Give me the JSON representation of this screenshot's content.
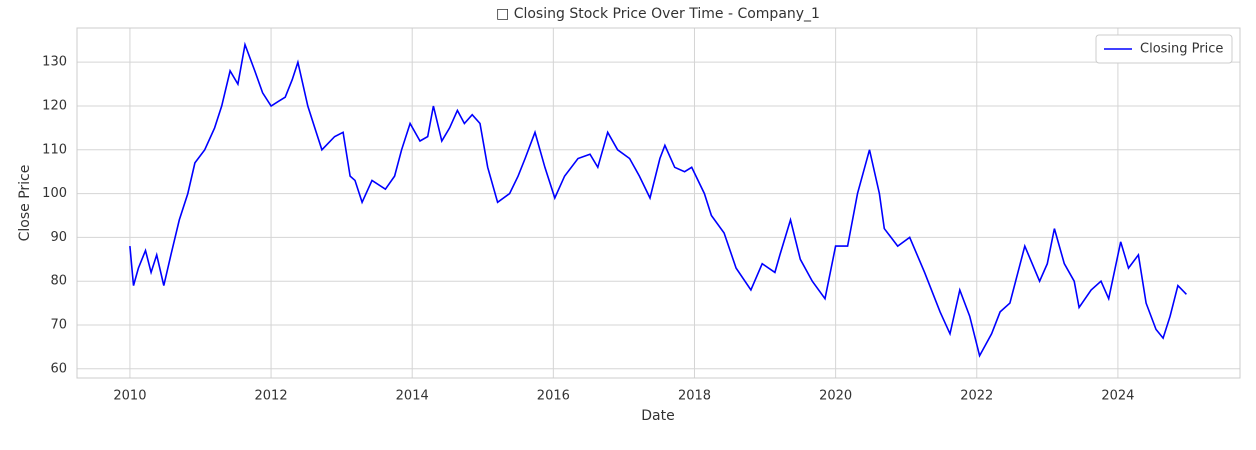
{
  "chart_data": {
    "type": "line",
    "title": "□ Closing Stock Price Over Time - Company_1",
    "x_label": "Date",
    "y_label": "Close Price",
    "x": [
      2010.0,
      2010.05,
      2010.12,
      2010.22,
      2010.3,
      2010.38,
      2010.48,
      2010.58,
      2010.7,
      2010.82,
      2010.92,
      2011.06,
      2011.2,
      2011.3,
      2011.42,
      2011.53,
      2011.63,
      2011.77,
      2011.88,
      2012.0,
      2012.1,
      2012.2,
      2012.3,
      2012.38,
      2012.52,
      2012.62,
      2012.72,
      2012.9,
      2013.02,
      2013.12,
      2013.19,
      2013.29,
      2013.43,
      2013.62,
      2013.75,
      2013.85,
      2013.97,
      2014.11,
      2014.22,
      2014.3,
      2014.42,
      2014.53,
      2014.64,
      2014.74,
      2014.85,
      2014.96,
      2015.07,
      2015.21,
      2015.38,
      2015.5,
      2015.6,
      2015.74,
      2015.88,
      2016.02,
      2016.16,
      2016.35,
      2016.52,
      2016.63,
      2016.77,
      2016.91,
      2017.08,
      2017.22,
      2017.37,
      2017.51,
      2017.58,
      2017.72,
      2017.86,
      2017.96,
      2018.14,
      2018.24,
      2018.42,
      2018.59,
      2018.8,
      2018.96,
      2019.14,
      2019.21,
      2019.36,
      2019.5,
      2019.67,
      2019.85,
      2020.0,
      2020.17,
      2020.31,
      2020.48,
      2020.62,
      2020.69,
      2020.88,
      2021.05,
      2021.26,
      2021.48,
      2021.62,
      2021.76,
      2021.9,
      2022.04,
      2022.21,
      2022.33,
      2022.47,
      2022.68,
      2022.89,
      2023.0,
      2023.1,
      2023.24,
      2023.38,
      2023.45,
      2023.62,
      2023.76,
      2023.87,
      2024.04,
      2024.15,
      2024.29,
      2024.4,
      2024.54,
      2024.64,
      2024.74,
      2024.85,
      2024.97
    ],
    "series": [
      {
        "name": "Closing Price",
        "color": "#0000ff",
        "values": [
          88,
          79,
          83,
          87,
          82,
          86,
          79,
          86,
          94,
          100,
          107,
          110,
          115,
          120,
          128,
          125,
          134,
          128,
          123,
          120,
          121,
          122,
          126,
          130,
          120,
          115,
          110,
          113,
          114,
          104,
          103,
          98,
          103,
          101,
          104,
          110,
          116,
          112,
          113,
          120,
          112,
          115,
          119,
          116,
          118,
          116,
          106,
          98,
          100,
          104,
          108,
          114,
          106,
          99,
          104,
          108,
          109,
          106,
          114,
          110,
          108,
          104,
          99,
          108,
          111,
          106,
          105,
          106,
          100,
          95,
          91,
          83,
          78,
          84,
          82,
          86,
          94,
          85,
          80,
          76,
          88,
          88,
          100,
          110,
          100,
          92,
          88,
          90,
          82,
          73,
          68,
          78,
          72,
          63,
          68,
          73,
          75,
          88,
          80,
          84,
          92,
          84,
          80,
          74,
          78,
          80,
          76,
          89,
          83,
          86,
          75,
          69,
          67,
          72,
          79,
          77
        ]
      }
    ],
    "xlim": [
      2009.25,
      2025.73
    ],
    "xticks": [
      2010,
      2012,
      2014,
      2016,
      2018,
      2020,
      2022,
      2024
    ],
    "ylim": [
      57.9,
      137.8
    ],
    "yticks": [
      60,
      70,
      80,
      90,
      100,
      110,
      120,
      130
    ],
    "grid": true,
    "legend": "upper right"
  }
}
